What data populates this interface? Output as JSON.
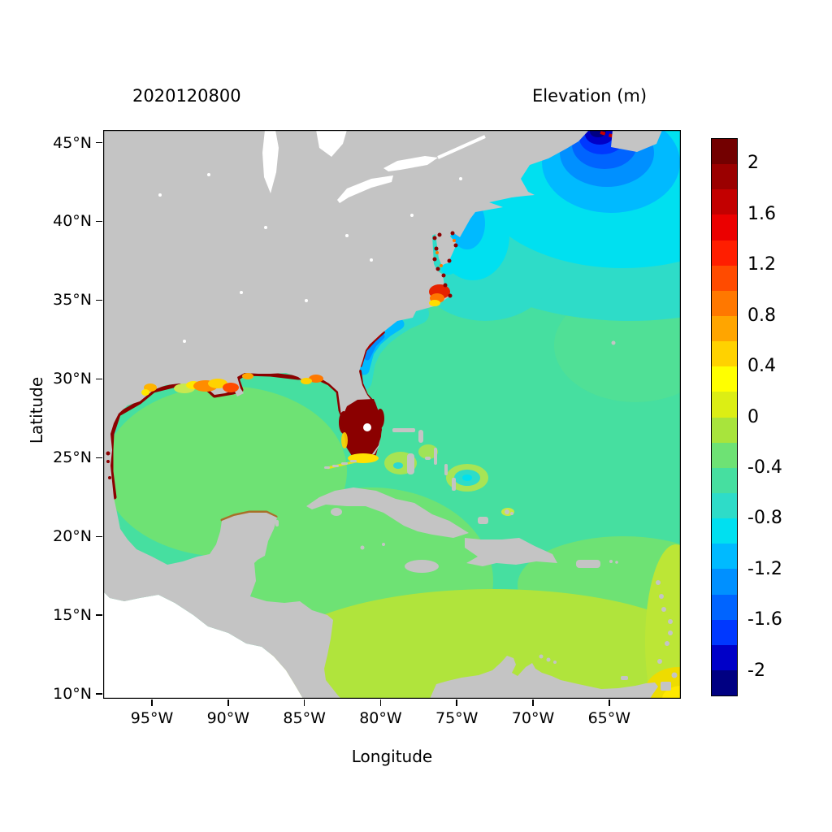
{
  "header": {
    "left_title": "2020120800",
    "right_title": "Elevation (m)"
  },
  "axes": {
    "xlabel": "Longitude",
    "ylabel": "Latitude",
    "lon_min": -98.2,
    "lon_max": -60.3,
    "lat_min": 9.7,
    "lat_max": 45.8,
    "x_ticks": [
      {
        "label": "95°W",
        "lon": -95
      },
      {
        "label": "90°W",
        "lon": -90
      },
      {
        "label": "85°W",
        "lon": -85
      },
      {
        "label": "80°W",
        "lon": -80
      },
      {
        "label": "75°W",
        "lon": -75
      },
      {
        "label": "70°W",
        "lon": -70
      },
      {
        "label": "65°W",
        "lon": -65
      }
    ],
    "y_ticks": [
      {
        "label": "45°N",
        "lat": 45
      },
      {
        "label": "40°N",
        "lat": 40
      },
      {
        "label": "35°N",
        "lat": 35
      },
      {
        "label": "30°N",
        "lat": 30
      },
      {
        "label": "25°N",
        "lat": 25
      },
      {
        "label": "20°N",
        "lat": 20
      },
      {
        "label": "15°N",
        "lat": 15
      },
      {
        "label": "10°N",
        "lat": 10
      }
    ]
  },
  "colorbar": {
    "min": -2.2,
    "max": 2.2,
    "ticks": [
      {
        "label": "2",
        "value": 2
      },
      {
        "label": "1.6",
        "value": 1.6
      },
      {
        "label": "1.2",
        "value": 1.2
      },
      {
        "label": "0.8",
        "value": 0.8
      },
      {
        "label": "0.4",
        "value": 0.4
      },
      {
        "label": "0",
        "value": 0
      },
      {
        "label": "-0.4",
        "value": -0.4
      },
      {
        "label": "-0.8",
        "value": -0.8
      },
      {
        "label": "-1.2",
        "value": -1.2
      },
      {
        "label": "-1.6",
        "value": -1.6
      },
      {
        "label": "-2",
        "value": -2
      }
    ],
    "colors_top_to_bottom": [
      "#730000",
      "#9B0000",
      "#C30000",
      "#EB0000",
      "#FF1E00",
      "#FF4B00",
      "#FF7800",
      "#FFA500",
      "#FFD200",
      "#FFFF00",
      "#DCEE14",
      "#A8E43C",
      "#6EE274",
      "#46DFA0",
      "#2EDCC8",
      "#00E0F0",
      "#00BAFF",
      "#0090FF",
      "#0064FF",
      "#0038FF",
      "#0000C8",
      "#000082"
    ]
  },
  "chart_data": {
    "type": "heatmap",
    "title": "2020120800",
    "legend_title": "Elevation (m)",
    "xlabel": "Longitude",
    "ylabel": "Latitude",
    "x_tick_labels": [
      "95°W",
      "90°W",
      "85°W",
      "80°W",
      "75°W",
      "70°W",
      "65°W"
    ],
    "y_tick_labels": [
      "45°N",
      "40°N",
      "35°N",
      "30°N",
      "25°N",
      "20°N",
      "15°N",
      "10°N"
    ],
    "colorbar_tick_labels": [
      "2",
      "1.6",
      "1.2",
      "0.8",
      "0.4",
      "0",
      "-0.4",
      "-0.8",
      "-1.2",
      "-1.6",
      "-2"
    ],
    "value_range_m": [
      -2.2,
      2.2
    ],
    "lon_range_deg": [
      -98.2,
      -60.3
    ],
    "lat_range_deg": [
      9.7,
      45.8
    ],
    "land_color": "#C4C4C4",
    "outside_domain_color": "#FFFFFF",
    "background_elevation_m": -0.3,
    "notable_features": [
      {
        "region": "Gulf of Maine / Scotian Shelf (~65°W, 44.5°N)",
        "elevation_m": -2.0,
        "appearance": "dark blue negative core reaching top edge"
      },
      {
        "region": "Northwest Atlantic (75–60°W, 36–46°N)",
        "elevation_m": -0.8,
        "appearance": "broad cyan negative anomaly"
      },
      {
        "region": "Open Atlantic background",
        "elevation_m": -0.3,
        "appearance": "teal-green"
      },
      {
        "region": "Gulf of Mexico interior",
        "elevation_m": -0.15,
        "appearance": "light green"
      },
      {
        "region": "Caribbean Sea south of ~16°N",
        "elevation_m": 0.2,
        "appearance": "yellow-green"
      },
      {
        "region": "South Florida peninsula and coast (~81°W, 26°N)",
        "elevation_m": 2.0,
        "appearance": "dark red flooded high with white Lake Okeechobee dot"
      },
      {
        "region": "Louisiana shelf (~91°W, 29°N)",
        "elevation_m": 0.8,
        "appearance": "orange/yellow coastal patches"
      },
      {
        "region": "Pamlico Sound / Cape Hatteras (~76°W, 35.5°N)",
        "elevation_m": 1.4,
        "appearance": "red-orange patch with yellow fringe"
      },
      {
        "region": "Gulf coast and Florida coastline fringe",
        "elevation_m": 2.0,
        "appearance": "thin dark red rim"
      },
      {
        "region": "Southeast US shelf (81–78°W, 30–34°N)",
        "elevation_m": -1.0,
        "appearance": "blue nearshore streak"
      },
      {
        "region": "Chesapeake / Delaware bays",
        "elevation_m": 1.8,
        "appearance": "dark red speckles"
      },
      {
        "region": "Southeast corner near Trinidad (~61°W, 10.5°N)",
        "elevation_m": 0.45,
        "appearance": "yellow patch"
      }
    ]
  }
}
